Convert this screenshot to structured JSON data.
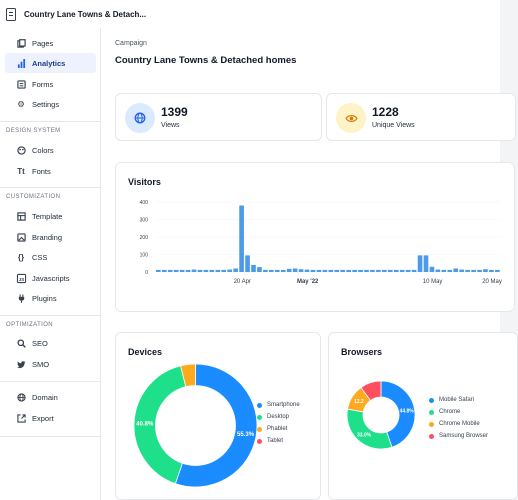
{
  "app": {
    "title": "Country Lane Towns & Detach..."
  },
  "sidebar": {
    "items": [
      {
        "label": "Pages",
        "icon": "pages-icon"
      },
      {
        "label": "Analytics",
        "icon": "bar-chart-icon",
        "active": true
      },
      {
        "label": "Forms",
        "icon": "forms-icon"
      },
      {
        "label": "Settings",
        "icon": "gear-icon"
      }
    ],
    "sections": [
      {
        "label": "DESIGN SYSTEM",
        "items": [
          {
            "label": "Colors",
            "icon": "palette-icon"
          },
          {
            "label": "Fonts",
            "icon": "font-icon"
          }
        ]
      },
      {
        "label": "CUSTOMIZATION",
        "items": [
          {
            "label": "Template",
            "icon": "template-icon"
          },
          {
            "label": "Branding",
            "icon": "branding-icon"
          },
          {
            "label": "CSS",
            "icon": "code-braces-icon"
          },
          {
            "label": "Javascripts",
            "icon": "javascript-icon"
          },
          {
            "label": "Plugins",
            "icon": "plug-icon"
          }
        ]
      },
      {
        "label": "OPTIMIZATION",
        "items": [
          {
            "label": "SEO",
            "icon": "search-icon"
          },
          {
            "label": "SMO",
            "icon": "twitter-icon"
          }
        ]
      }
    ],
    "footer_items": [
      {
        "label": "Domain",
        "icon": "globe-icon"
      },
      {
        "label": "Export",
        "icon": "export-icon"
      }
    ]
  },
  "main": {
    "breadcrumb": "Campaign",
    "title": "Country Lane Towns & Detached homes",
    "stats": [
      {
        "value": "1399",
        "label": "Views",
        "icon": "globe-icon",
        "bg": "#dbeafe",
        "fg": "#2563eb"
      },
      {
        "value": "1228",
        "label": "Unique Views",
        "icon": "eye-icon",
        "bg": "#fef3c7",
        "fg": "#d97706"
      }
    ]
  },
  "visitors": {
    "title": "Visitors",
    "chart_data": {
      "type": "bar",
      "title": "Visitors",
      "ylim": [
        0,
        400
      ],
      "yticks": [
        "400",
        "300",
        "200",
        "100",
        "0"
      ],
      "xtick_labels": [
        {
          "label": "20 Apr",
          "at": 14
        },
        {
          "label": "May '22",
          "at": 25
        },
        {
          "label": "10 May",
          "at": 46
        },
        {
          "label": "20 May",
          "at": 56
        }
      ],
      "values": [
        12,
        12,
        12,
        12,
        12,
        12,
        14,
        12,
        12,
        12,
        12,
        12,
        14,
        20,
        380,
        95,
        40,
        28,
        12,
        12,
        12,
        12,
        18,
        20,
        16,
        14,
        12,
        12,
        12,
        12,
        12,
        12,
        12,
        12,
        12,
        12,
        12,
        12,
        12,
        12,
        12,
        12,
        12,
        12,
        95,
        95,
        30,
        14,
        12,
        12,
        20,
        14,
        12,
        12,
        12,
        16,
        12,
        12
      ],
      "color": "#4b9be8"
    }
  },
  "devices": {
    "title": "Devices",
    "chart_data": {
      "type": "pie",
      "title": "Devices",
      "labels": [
        "Smartphone",
        "Desktop",
        "Phablet",
        "Tablet"
      ],
      "values": [
        55.3,
        40.8,
        3.9,
        0
      ],
      "colors": [
        "#1a8cff",
        "#1ee08a",
        "#ffa91f",
        "#ff4f5e"
      ],
      "slice_labels": [
        "55.3%",
        "40.8%",
        "",
        ""
      ]
    }
  },
  "browsers": {
    "title": "Browsers",
    "legend_labels": [
      "Mobile Safari",
      "Chrome",
      "Chrome Mobile",
      "Samsung Browser"
    ],
    "chart_data": {
      "type": "pie",
      "title": "Browsers",
      "labels": [
        "Mobile Safari",
        "Chrome",
        "Chrome Mobile",
        "Samsung Browser"
      ],
      "values": [
        44.8,
        33.0,
        12.2,
        10.0
      ],
      "colors": [
        "#1a8cff",
        "#1ee08a",
        "#ffa91f",
        "#ff4f5e"
      ],
      "slice_labels": [
        "44.8%",
        "33.0%",
        "12.2",
        ""
      ]
    }
  }
}
